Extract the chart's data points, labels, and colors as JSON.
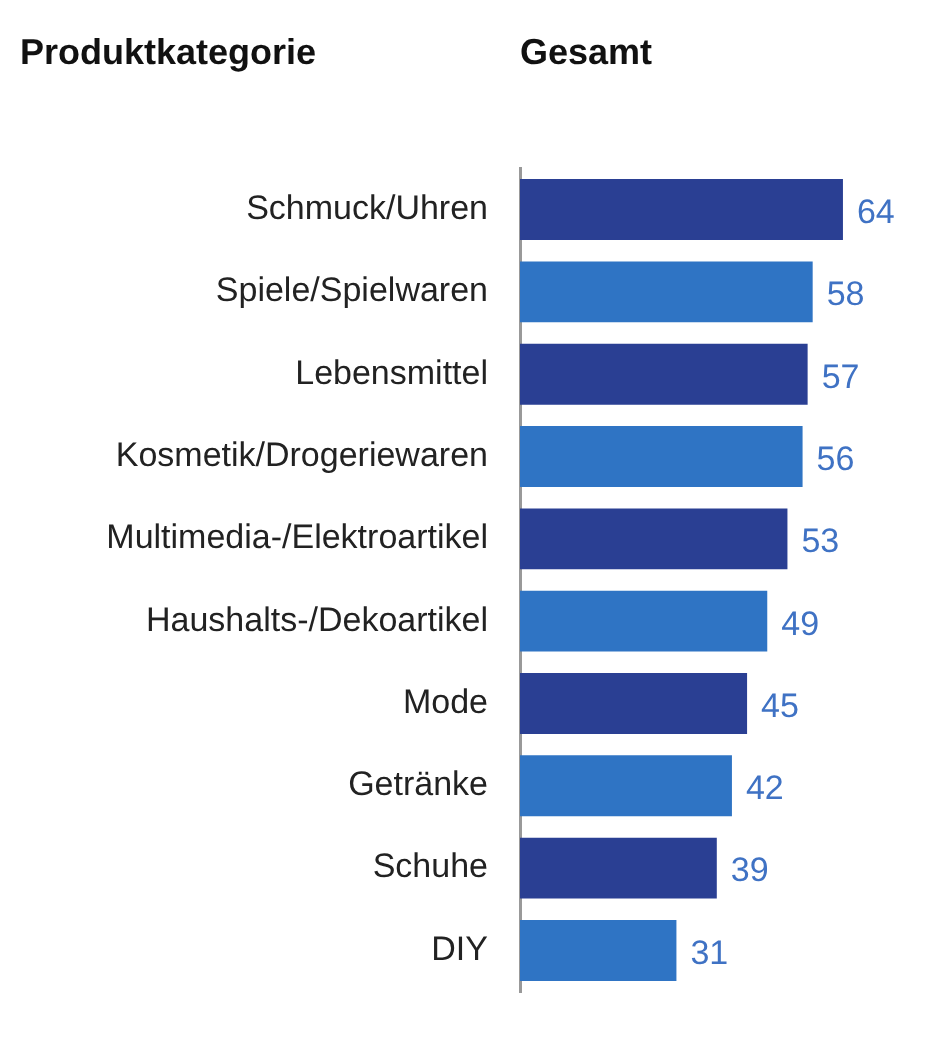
{
  "chart_data": {
    "type": "bar",
    "orientation": "horizontal",
    "title": "Gesamt",
    "ylabel": "Produktkategorie",
    "categories": [
      "Schmuck/Uhren",
      "Spiele/Spielwaren",
      "Lebensmittel",
      "Kosmetik/Drogeriewaren",
      "Multimedia-/Elektroartikel",
      "Haushalts-/Dekoartikel",
      "Mode",
      "Getränke",
      "Schuhe",
      "DIY"
    ],
    "values": [
      64,
      58,
      57,
      56,
      53,
      49,
      45,
      42,
      39,
      31
    ],
    "colors": [
      "#2a3f93",
      "#2f74c4",
      "#2a3f93",
      "#2f74c4",
      "#2a3f93",
      "#2f74c4",
      "#2a3f93",
      "#2f74c4",
      "#2a3f93",
      "#2f74c4"
    ],
    "data_labels": true,
    "legend": false
  }
}
